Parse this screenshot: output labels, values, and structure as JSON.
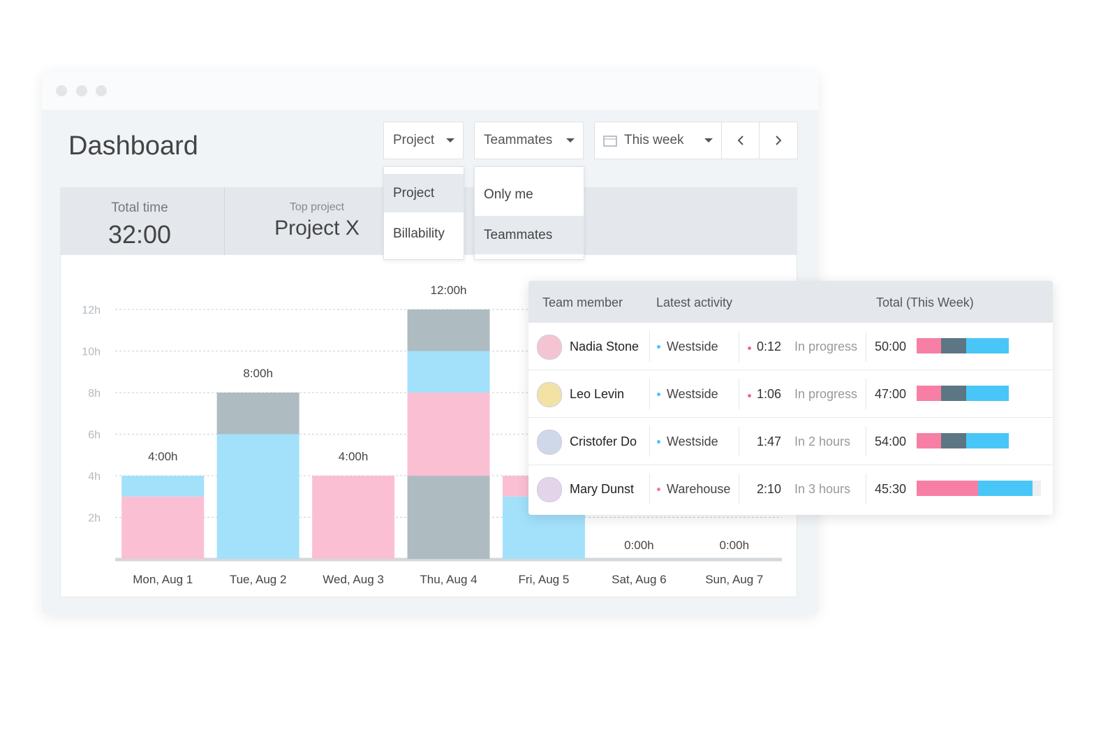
{
  "header": {
    "title": "Dashboard",
    "filters": [
      "Project",
      "Teammates",
      "This week"
    ]
  },
  "menus": {
    "project": [
      "Project",
      "Billability"
    ],
    "teammates": [
      "Only me",
      "Teammates"
    ]
  },
  "summary": {
    "total_time_label": "Total time",
    "total_time": "32:00",
    "top_project_label": "Top project",
    "top_project": "Project X"
  },
  "chart_data": {
    "type": "stacked_bar",
    "categories": [
      "Mon, Aug 1",
      "Tue, Aug 2",
      "Wed, Aug 3",
      "Thu, Aug 4",
      "Fri, Aug 5",
      "Sat, Aug 6",
      "Sun, Aug 7"
    ],
    "series": [
      {
        "color": "#aebbc1",
        "values": [
          0,
          0,
          0,
          4,
          0,
          0,
          0
        ]
      },
      {
        "color": "#fbbfd4",
        "values": [
          3,
          0,
          4,
          4,
          0,
          0,
          0
        ]
      },
      {
        "color": "#a3e1fb",
        "values": [
          1,
          6,
          0,
          2,
          3,
          0,
          0
        ]
      },
      {
        "color": "#fbbfd4",
        "values": [
          0,
          0,
          0,
          0,
          1,
          0,
          0
        ]
      },
      {
        "color": "#aebbc1",
        "values": [
          0,
          2,
          0,
          2,
          0,
          0,
          0
        ]
      }
    ],
    "value_labels": [
      "4:00h",
      "8:00h",
      "4:00h",
      "12:00h",
      null,
      "0:00h",
      "0:00h"
    ],
    "ylim": [
      0,
      12
    ],
    "yticks": [
      {
        "value": 2,
        "label": "2h"
      },
      {
        "value": 4,
        "label": "4h"
      },
      {
        "value": 6,
        "label": "6h"
      },
      {
        "value": 8,
        "label": "8h"
      },
      {
        "value": 10,
        "label": "10h"
      },
      {
        "value": 12,
        "label": "12h"
      }
    ],
    "grid": true
  },
  "table": {
    "headers": [
      "Team member",
      "Latest activity",
      "Total (This Week)"
    ],
    "rows": [
      [
        "Nadia Stone",
        "Westside",
        "0:12",
        "In progress",
        "50:00"
      ],
      [
        "Leo Levin",
        "Westside",
        "1:06",
        "In progress",
        "47:00"
      ],
      [
        "Cristofer Do",
        "Westside",
        "1:47",
        "In 2 hours",
        "54:00"
      ],
      [
        "Mary Dunst",
        "Warehouse",
        "2:10",
        "In 3 hours",
        "45:30"
      ]
    ]
  }
}
